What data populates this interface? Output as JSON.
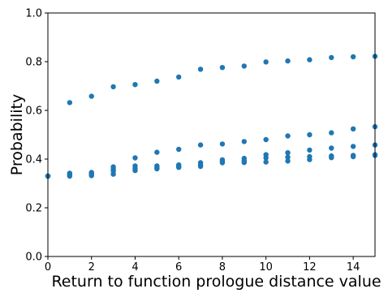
{
  "chart_data": {
    "type": "scatter",
    "title": "",
    "xlabel": "Return to function prologue distance value",
    "ylabel": "Probability",
    "xlim": [
      0,
      15
    ],
    "ylim": [
      0,
      1.0
    ],
    "xticks": [
      "0",
      "2",
      "4",
      "6",
      "8",
      "10",
      "12",
      "14"
    ],
    "yticks": [
      "0.0",
      "0.2",
      "0.4",
      "0.6",
      "0.8",
      "1.0"
    ],
    "grid": false,
    "color": "#1f77b4",
    "series": [
      {
        "x": [
          0,
          1,
          2,
          3,
          4,
          5,
          6,
          7,
          8,
          9,
          10,
          11,
          12,
          13,
          14,
          15
        ],
        "y": [
          0.33,
          0.632,
          0.658,
          0.697,
          0.706,
          0.72,
          0.737,
          0.769,
          0.776,
          0.782,
          0.799,
          0.803,
          0.808,
          0.817,
          0.82,
          0.822
        ]
      },
      {
        "x": [
          0,
          1,
          2,
          3,
          4,
          5,
          6,
          7,
          8,
          9,
          10,
          11,
          12,
          13,
          14,
          15
        ],
        "y": [
          0.33,
          0.342,
          0.345,
          0.368,
          0.405,
          0.428,
          0.44,
          0.458,
          0.462,
          0.472,
          0.48,
          0.495,
          0.5,
          0.508,
          0.524,
          0.533
        ]
      },
      {
        "x": [
          0,
          1,
          2,
          3,
          4,
          5,
          6,
          7,
          8,
          9,
          10,
          11,
          12,
          13,
          14,
          15
        ],
        "y": [
          0.33,
          0.335,
          0.34,
          0.358,
          0.372,
          0.372,
          0.376,
          0.385,
          0.397,
          0.403,
          0.418,
          0.426,
          0.437,
          0.445,
          0.452,
          0.458
        ]
      },
      {
        "x": [
          0,
          1,
          2,
          3,
          4,
          5,
          6,
          7,
          8,
          9,
          10,
          11,
          12,
          13,
          14,
          15
        ],
        "y": [
          0.33,
          0.335,
          0.338,
          0.35,
          0.362,
          0.365,
          0.37,
          0.375,
          0.39,
          0.393,
          0.405,
          0.408,
          0.41,
          0.413,
          0.415,
          0.418
        ]
      },
      {
        "x": [
          0,
          1,
          2,
          3,
          4,
          5,
          6,
          7,
          8,
          9,
          10,
          11,
          12,
          13,
          14,
          15
        ],
        "y": [
          0.33,
          0.33,
          0.332,
          0.338,
          0.353,
          0.36,
          0.366,
          0.37,
          0.385,
          0.386,
          0.388,
          0.392,
          0.398,
          0.406,
          0.41,
          0.415
        ]
      }
    ]
  }
}
